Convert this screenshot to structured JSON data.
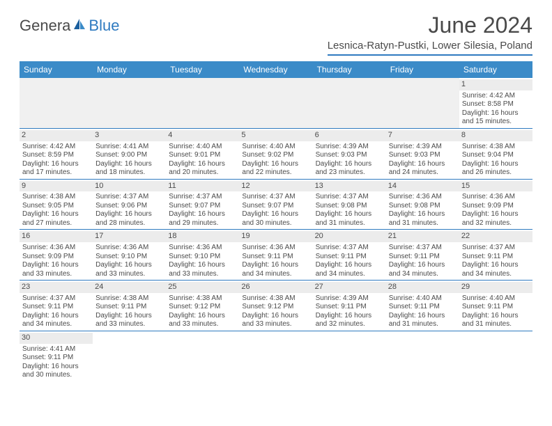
{
  "logo": {
    "text_general": "Genera",
    "text_blue": "Blue"
  },
  "title": "June 2024",
  "location": "Lesnica-Ratyn-Pustki, Lower Silesia, Poland",
  "colors": {
    "header_bg": "#3b8bc8",
    "accent": "#2e7ac0",
    "day_bg": "#ececec",
    "empty_bg": "#f0f0f0",
    "text": "#4a4a4a"
  },
  "weekdays": [
    "Sunday",
    "Monday",
    "Tuesday",
    "Wednesday",
    "Thursday",
    "Friday",
    "Saturday"
  ],
  "weeks": [
    [
      null,
      null,
      null,
      null,
      null,
      null,
      {
        "d": "1",
        "sunrise": "Sunrise: 4:42 AM",
        "sunset": "Sunset: 8:58 PM",
        "day1": "Daylight: 16 hours",
        "day2": "and 15 minutes."
      }
    ],
    [
      {
        "d": "2",
        "sunrise": "Sunrise: 4:42 AM",
        "sunset": "Sunset: 8:59 PM",
        "day1": "Daylight: 16 hours",
        "day2": "and 17 minutes."
      },
      {
        "d": "3",
        "sunrise": "Sunrise: 4:41 AM",
        "sunset": "Sunset: 9:00 PM",
        "day1": "Daylight: 16 hours",
        "day2": "and 18 minutes."
      },
      {
        "d": "4",
        "sunrise": "Sunrise: 4:40 AM",
        "sunset": "Sunset: 9:01 PM",
        "day1": "Daylight: 16 hours",
        "day2": "and 20 minutes."
      },
      {
        "d": "5",
        "sunrise": "Sunrise: 4:40 AM",
        "sunset": "Sunset: 9:02 PM",
        "day1": "Daylight: 16 hours",
        "day2": "and 22 minutes."
      },
      {
        "d": "6",
        "sunrise": "Sunrise: 4:39 AM",
        "sunset": "Sunset: 9:03 PM",
        "day1": "Daylight: 16 hours",
        "day2": "and 23 minutes."
      },
      {
        "d": "7",
        "sunrise": "Sunrise: 4:39 AM",
        "sunset": "Sunset: 9:03 PM",
        "day1": "Daylight: 16 hours",
        "day2": "and 24 minutes."
      },
      {
        "d": "8",
        "sunrise": "Sunrise: 4:38 AM",
        "sunset": "Sunset: 9:04 PM",
        "day1": "Daylight: 16 hours",
        "day2": "and 26 minutes."
      }
    ],
    [
      {
        "d": "9",
        "sunrise": "Sunrise: 4:38 AM",
        "sunset": "Sunset: 9:05 PM",
        "day1": "Daylight: 16 hours",
        "day2": "and 27 minutes."
      },
      {
        "d": "10",
        "sunrise": "Sunrise: 4:37 AM",
        "sunset": "Sunset: 9:06 PM",
        "day1": "Daylight: 16 hours",
        "day2": "and 28 minutes."
      },
      {
        "d": "11",
        "sunrise": "Sunrise: 4:37 AM",
        "sunset": "Sunset: 9:07 PM",
        "day1": "Daylight: 16 hours",
        "day2": "and 29 minutes."
      },
      {
        "d": "12",
        "sunrise": "Sunrise: 4:37 AM",
        "sunset": "Sunset: 9:07 PM",
        "day1": "Daylight: 16 hours",
        "day2": "and 30 minutes."
      },
      {
        "d": "13",
        "sunrise": "Sunrise: 4:37 AM",
        "sunset": "Sunset: 9:08 PM",
        "day1": "Daylight: 16 hours",
        "day2": "and 31 minutes."
      },
      {
        "d": "14",
        "sunrise": "Sunrise: 4:36 AM",
        "sunset": "Sunset: 9:08 PM",
        "day1": "Daylight: 16 hours",
        "day2": "and 31 minutes."
      },
      {
        "d": "15",
        "sunrise": "Sunrise: 4:36 AM",
        "sunset": "Sunset: 9:09 PM",
        "day1": "Daylight: 16 hours",
        "day2": "and 32 minutes."
      }
    ],
    [
      {
        "d": "16",
        "sunrise": "Sunrise: 4:36 AM",
        "sunset": "Sunset: 9:09 PM",
        "day1": "Daylight: 16 hours",
        "day2": "and 33 minutes."
      },
      {
        "d": "17",
        "sunrise": "Sunrise: 4:36 AM",
        "sunset": "Sunset: 9:10 PM",
        "day1": "Daylight: 16 hours",
        "day2": "and 33 minutes."
      },
      {
        "d": "18",
        "sunrise": "Sunrise: 4:36 AM",
        "sunset": "Sunset: 9:10 PM",
        "day1": "Daylight: 16 hours",
        "day2": "and 33 minutes."
      },
      {
        "d": "19",
        "sunrise": "Sunrise: 4:36 AM",
        "sunset": "Sunset: 9:11 PM",
        "day1": "Daylight: 16 hours",
        "day2": "and 34 minutes."
      },
      {
        "d": "20",
        "sunrise": "Sunrise: 4:37 AM",
        "sunset": "Sunset: 9:11 PM",
        "day1": "Daylight: 16 hours",
        "day2": "and 34 minutes."
      },
      {
        "d": "21",
        "sunrise": "Sunrise: 4:37 AM",
        "sunset": "Sunset: 9:11 PM",
        "day1": "Daylight: 16 hours",
        "day2": "and 34 minutes."
      },
      {
        "d": "22",
        "sunrise": "Sunrise: 4:37 AM",
        "sunset": "Sunset: 9:11 PM",
        "day1": "Daylight: 16 hours",
        "day2": "and 34 minutes."
      }
    ],
    [
      {
        "d": "23",
        "sunrise": "Sunrise: 4:37 AM",
        "sunset": "Sunset: 9:11 PM",
        "day1": "Daylight: 16 hours",
        "day2": "and 34 minutes."
      },
      {
        "d": "24",
        "sunrise": "Sunrise: 4:38 AM",
        "sunset": "Sunset: 9:11 PM",
        "day1": "Daylight: 16 hours",
        "day2": "and 33 minutes."
      },
      {
        "d": "25",
        "sunrise": "Sunrise: 4:38 AM",
        "sunset": "Sunset: 9:12 PM",
        "day1": "Daylight: 16 hours",
        "day2": "and 33 minutes."
      },
      {
        "d": "26",
        "sunrise": "Sunrise: 4:38 AM",
        "sunset": "Sunset: 9:12 PM",
        "day1": "Daylight: 16 hours",
        "day2": "and 33 minutes."
      },
      {
        "d": "27",
        "sunrise": "Sunrise: 4:39 AM",
        "sunset": "Sunset: 9:11 PM",
        "day1": "Daylight: 16 hours",
        "day2": "and 32 minutes."
      },
      {
        "d": "28",
        "sunrise": "Sunrise: 4:40 AM",
        "sunset": "Sunset: 9:11 PM",
        "day1": "Daylight: 16 hours",
        "day2": "and 31 minutes."
      },
      {
        "d": "29",
        "sunrise": "Sunrise: 4:40 AM",
        "sunset": "Sunset: 9:11 PM",
        "day1": "Daylight: 16 hours",
        "day2": "and 31 minutes."
      }
    ],
    [
      {
        "d": "30",
        "sunrise": "Sunrise: 4:41 AM",
        "sunset": "Sunset: 9:11 PM",
        "day1": "Daylight: 16 hours",
        "day2": "and 30 minutes."
      },
      null,
      null,
      null,
      null,
      null,
      null
    ]
  ]
}
